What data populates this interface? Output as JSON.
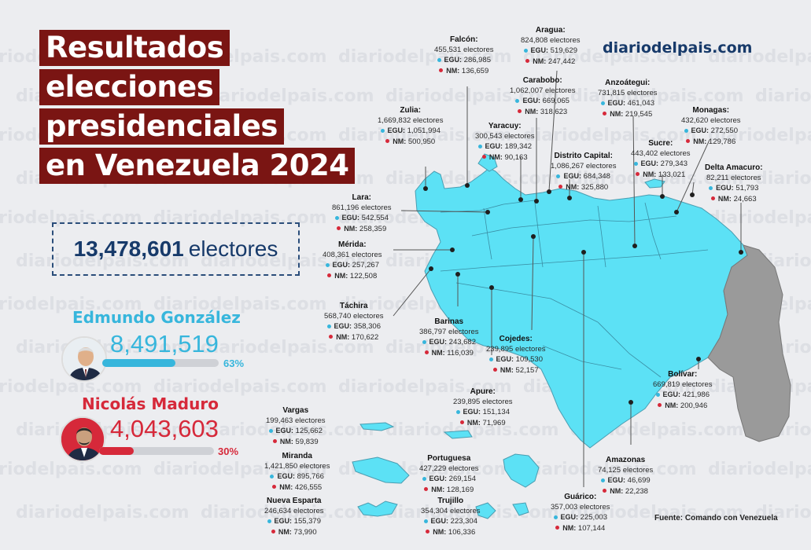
{
  "title_lines": [
    "Resultados",
    "elecciones",
    "presidenciales",
    "en Venezuela 2024"
  ],
  "brand": "diariodelpais.com",
  "watermark": "diariodelpais.com",
  "total": {
    "number": "13,478,601",
    "unit": "electores"
  },
  "candidates": [
    {
      "name": "Edmundo González",
      "votes": "8,491,519",
      "pct_label": "63%",
      "share": 0.63,
      "color": "#37b6dc"
    },
    {
      "name": "Nicolás Maduro",
      "votes": "4,043,603",
      "pct_label": "30%",
      "share": 0.3,
      "color": "#d6293a"
    }
  ],
  "legend_prefix": {
    "egu": "EGU:",
    "nm": "NM:"
  },
  "states": [
    {
      "name": "Falcón:",
      "electores": "455,531 electores",
      "egu": "286,985",
      "nm": "136,659"
    },
    {
      "name": "Aragua:",
      "electores": "824,808 electores",
      "egu": "519,629",
      "nm": "247,442"
    },
    {
      "name": "Carabobo:",
      "electores": "1,062,007 electores",
      "egu": "669,065",
      "nm": "318,623"
    },
    {
      "name": "Anzoátegui:",
      "electores": "731,815 electores",
      "egu": "461,043",
      "nm": "219,545"
    },
    {
      "name": "Zulia:",
      "electores": "1,669,832 electores",
      "egu": "1,051,994",
      "nm": "500,950"
    },
    {
      "name": "Yaracuy:",
      "electores": "300,543 electores",
      "egu": "189,342",
      "nm": "90,163"
    },
    {
      "name": "Monagas:",
      "electores": "432,620 electores",
      "egu": "272,550",
      "nm": "129,786"
    },
    {
      "name": "Sucre:",
      "electores": "443,402 electores",
      "egu": "279,343",
      "nm": "133,021"
    },
    {
      "name": "Distrito Capital:",
      "electores": "1,086,267 electores",
      "egu": "684,348",
      "nm": "325,880"
    },
    {
      "name": "Delta Amacuro:",
      "electores": "82,211 electores",
      "egu": "51,793",
      "nm": "24,663"
    },
    {
      "name": "Lara:",
      "electores": "861,196 electores",
      "egu": "542,554",
      "nm": "258,359"
    },
    {
      "name": "Mérida:",
      "electores": "408,361 electores",
      "egu": "257,267",
      "nm": "122,508"
    },
    {
      "name": "Táchira",
      "electores": "568,740 electores",
      "egu": "358,306",
      "nm": "170,622"
    },
    {
      "name": "Barinas",
      "electores": "386,797 electores",
      "egu": "243,682",
      "nm": "116,039"
    },
    {
      "name": "Cojedes:",
      "electores": "239,895 electores",
      "egu": "109,530",
      "nm": "52,157"
    },
    {
      "name": "Apure:",
      "electores": "239,895 electores",
      "egu": "151,134",
      "nm": "71,969"
    },
    {
      "name": "Bolívar:",
      "electores": "669,819 electores",
      "egu": "421,986",
      "nm": "200,946"
    },
    {
      "name": "Vargas",
      "electores": "199,463 electores",
      "egu": "125,662",
      "nm": "59,839"
    },
    {
      "name": "Miranda",
      "electores": "1,421,850 electores",
      "egu": "895,766",
      "nm": "426,555"
    },
    {
      "name": "Portuguesa",
      "electores": "427,229 electores",
      "egu": "269,154",
      "nm": "128,169"
    },
    {
      "name": "Amazonas",
      "electores": "74,125 electores",
      "egu": "46,699",
      "nm": "22,238"
    },
    {
      "name": "Nueva Esparta",
      "electores": "246,634 electores",
      "egu": "155,379",
      "nm": "73,990"
    },
    {
      "name": "Trujillo",
      "electores": "354,304 electores",
      "egu": "223,304",
      "nm": "106,336"
    },
    {
      "name": "Guárico:",
      "electores": "357,003 electores",
      "egu": "225,003",
      "nm": "107,144"
    }
  ],
  "source": "Fuente: Comando con Venezuela",
  "colors": {
    "map_fill": "#5ce1f5",
    "disputed": "#9a9a9a",
    "title_bg": "#7a1513",
    "navy": "#173a6a"
  }
}
